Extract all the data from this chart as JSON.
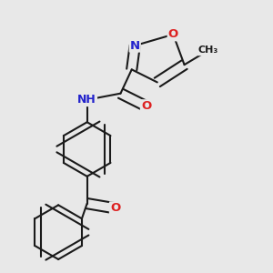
{
  "background_color": "#e8e8e8",
  "bond_color": "#1a1a1a",
  "bond_width": 1.5,
  "atom_colors": {
    "N": "#2222cc",
    "O": "#dd2222",
    "C": "#1a1a1a",
    "H": "#666666"
  },
  "font_size": 9.5
}
